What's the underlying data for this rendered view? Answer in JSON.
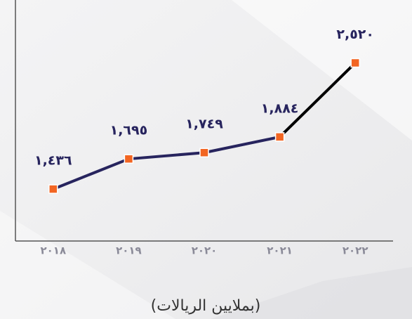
{
  "chart_data": {
    "type": "line",
    "x_label": "(بملايين الريالات)",
    "categories": [
      "٢٠١٨",
      "٢٠١٩",
      "٢٠٢٠",
      "٢٠٢١",
      "٢٠٢٢"
    ],
    "series": [
      {
        "name": null,
        "color": "#27245e",
        "marker_color": "#f26522",
        "last_segment_color": "#000000",
        "values": [
          1436,
          1695,
          1749,
          1884,
          2520
        ],
        "value_labels": [
          "١,٤٣٦",
          "١,٦٩٥",
          "١,٧٤٩",
          "١,٨٨٤",
          "٢,٥٢٠"
        ]
      }
    ],
    "ylim": [
      990,
      3060
    ]
  }
}
